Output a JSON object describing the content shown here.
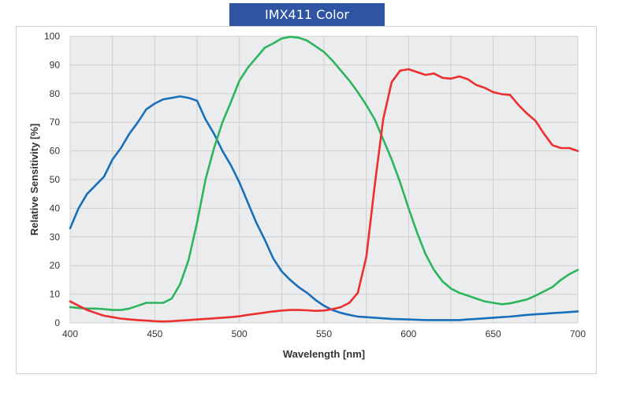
{
  "title": "IMX411 Color",
  "chart_data": {
    "type": "line",
    "title": "IMX411 Color",
    "xlabel": "Wavelength [nm]",
    "ylabel": "Relative Sensitivity [%]",
    "xlim": [
      400,
      700
    ],
    "ylim": [
      0,
      100
    ],
    "x_ticks": [
      400,
      450,
      500,
      550,
      600,
      650,
      700
    ],
    "y_ticks": [
      0,
      10,
      20,
      30,
      40,
      50,
      60,
      70,
      80,
      90,
      100
    ],
    "grid": true,
    "legend": null,
    "x": [
      400,
      405,
      410,
      415,
      420,
      425,
      430,
      435,
      440,
      445,
      450,
      455,
      460,
      465,
      470,
      475,
      480,
      485,
      490,
      495,
      500,
      505,
      510,
      515,
      520,
      525,
      530,
      535,
      540,
      545,
      550,
      555,
      560,
      565,
      570,
      575,
      580,
      585,
      590,
      595,
      600,
      605,
      610,
      615,
      620,
      625,
      630,
      635,
      640,
      645,
      650,
      655,
      660,
      665,
      670,
      675,
      680,
      685,
      690,
      695,
      700
    ],
    "series": [
      {
        "name": "Blue",
        "color": "#1a6fba",
        "values": [
          33,
          40,
          45,
          48,
          51,
          57,
          61,
          66,
          70,
          74.5,
          76.5,
          78,
          78.5,
          79,
          78.5,
          77.5,
          71,
          66,
          60,
          55,
          49,
          42,
          35,
          29,
          22.5,
          18,
          15,
          12.5,
          10.5,
          8,
          6,
          4.5,
          3.5,
          2.8,
          2.2,
          2,
          1.8,
          1.6,
          1.4,
          1.3,
          1.2,
          1.1,
          1,
          1,
          1,
          1,
          1,
          1.2,
          1.4,
          1.6,
          1.8,
          2,
          2.2,
          2.5,
          2.8,
          3,
          3.2,
          3.4,
          3.6,
          3.8,
          4
        ]
      },
      {
        "name": "Green",
        "color": "#2db55d",
        "values": [
          5.5,
          5.2,
          5,
          5,
          4.8,
          4.5,
          4.5,
          5,
          6,
          7,
          7,
          7,
          8.5,
          13.5,
          22,
          35,
          50,
          61,
          70,
          77,
          84.5,
          89,
          92.5,
          96,
          97.5,
          99.2,
          99.8,
          99.5,
          98.5,
          96.5,
          94.5,
          91.5,
          88,
          84.5,
          80.5,
          76,
          71,
          64,
          57,
          49,
          40,
          31.5,
          24,
          18.5,
          14.5,
          12,
          10.5,
          9.5,
          8.5,
          7.5,
          7,
          6.5,
          6.8,
          7.5,
          8.2,
          9.5,
          11,
          12.5,
          15,
          17,
          18.5
        ]
      },
      {
        "name": "Red",
        "color": "#ec2f2f",
        "values": [
          7.5,
          6,
          4.5,
          3.5,
          2.5,
          2,
          1.5,
          1.2,
          1,
          0.8,
          0.6,
          0.5,
          0.6,
          0.8,
          1,
          1.2,
          1.4,
          1.6,
          1.8,
          2,
          2.3,
          2.8,
          3.2,
          3.6,
          4,
          4.3,
          4.5,
          4.5,
          4.4,
          4.2,
          4.3,
          4.8,
          5.5,
          7,
          10.5,
          23,
          48,
          71,
          84,
          88,
          88.5,
          87.5,
          86.5,
          87,
          85.5,
          85.2,
          86,
          85,
          83,
          82,
          80.5,
          79.8,
          79.5,
          76,
          73,
          70.5,
          66,
          62,
          61,
          61,
          60
        ]
      }
    ]
  }
}
